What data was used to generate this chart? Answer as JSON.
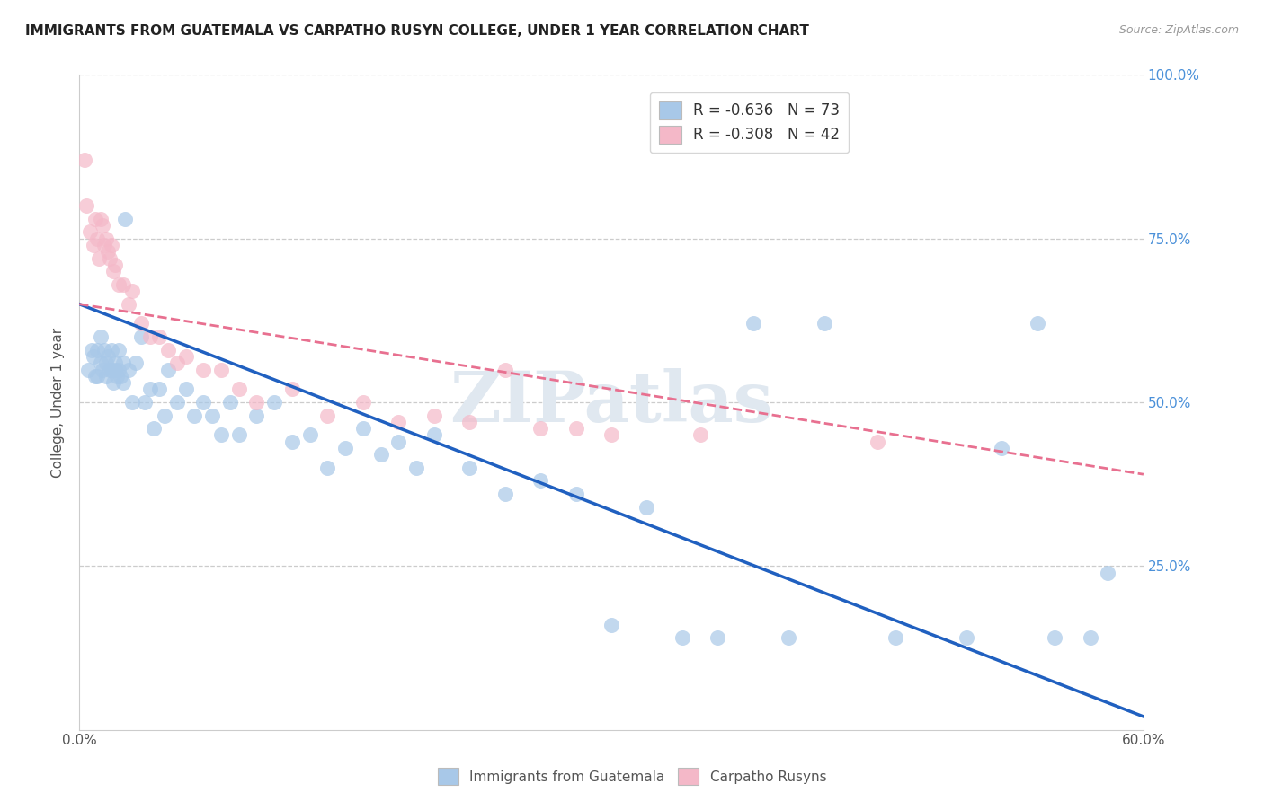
{
  "title": "IMMIGRANTS FROM GUATEMALA VS CARPATHO RUSYN COLLEGE, UNDER 1 YEAR CORRELATION CHART",
  "source": "Source: ZipAtlas.com",
  "ylabel": "College, Under 1 year",
  "xlim": [
    0.0,
    0.6
  ],
  "ylim": [
    0.0,
    1.0
  ],
  "xticks": [
    0.0,
    0.1,
    0.2,
    0.3,
    0.4,
    0.5,
    0.6
  ],
  "xticklabels": [
    "0.0%",
    "",
    "",
    "",
    "",
    "",
    "60.0%"
  ],
  "yticks": [
    0.0,
    0.25,
    0.5,
    0.75,
    1.0
  ],
  "yticklabels_right": [
    "",
    "25.0%",
    "50.0%",
    "75.0%",
    "100.0%"
  ],
  "legend_entry1": "R = -0.636   N = 73",
  "legend_entry2": "R = -0.308   N = 42",
  "blue_scatter_color": "#a8c8e8",
  "pink_scatter_color": "#f4b8c8",
  "blue_line_color": "#2060c0",
  "pink_line_color": "#e87090",
  "watermark": "ZIPatlas",
  "blue_line_x0": 0.0,
  "blue_line_y0": 0.65,
  "blue_line_x1": 0.6,
  "blue_line_y1": 0.02,
  "pink_line_x0": 0.0,
  "pink_line_y0": 0.65,
  "pink_line_x1": 0.6,
  "pink_line_y1": 0.39,
  "blue_x": [
    0.005,
    0.007,
    0.008,
    0.009,
    0.01,
    0.01,
    0.012,
    0.012,
    0.013,
    0.014,
    0.015,
    0.015,
    0.016,
    0.017,
    0.018,
    0.018,
    0.019,
    0.02,
    0.02,
    0.021,
    0.022,
    0.022,
    0.023,
    0.025,
    0.025,
    0.026,
    0.028,
    0.03,
    0.032,
    0.035,
    0.037,
    0.04,
    0.042,
    0.045,
    0.048,
    0.05,
    0.055,
    0.06,
    0.065,
    0.07,
    0.075,
    0.08,
    0.085,
    0.09,
    0.1,
    0.11,
    0.12,
    0.13,
    0.14,
    0.15,
    0.16,
    0.17,
    0.18,
    0.19,
    0.2,
    0.22,
    0.24,
    0.26,
    0.28,
    0.3,
    0.32,
    0.34,
    0.36,
    0.38,
    0.4,
    0.42,
    0.46,
    0.5,
    0.52,
    0.54,
    0.55,
    0.57,
    0.58
  ],
  "blue_y": [
    0.55,
    0.58,
    0.57,
    0.54,
    0.58,
    0.54,
    0.56,
    0.6,
    0.55,
    0.58,
    0.56,
    0.54,
    0.57,
    0.55,
    0.55,
    0.58,
    0.53,
    0.56,
    0.55,
    0.54,
    0.55,
    0.58,
    0.54,
    0.53,
    0.56,
    0.78,
    0.55,
    0.5,
    0.56,
    0.6,
    0.5,
    0.52,
    0.46,
    0.52,
    0.48,
    0.55,
    0.5,
    0.52,
    0.48,
    0.5,
    0.48,
    0.45,
    0.5,
    0.45,
    0.48,
    0.5,
    0.44,
    0.45,
    0.4,
    0.43,
    0.46,
    0.42,
    0.44,
    0.4,
    0.45,
    0.4,
    0.36,
    0.38,
    0.36,
    0.16,
    0.34,
    0.14,
    0.14,
    0.62,
    0.14,
    0.62,
    0.14,
    0.14,
    0.43,
    0.62,
    0.14,
    0.14,
    0.24
  ],
  "pink_x": [
    0.003,
    0.004,
    0.006,
    0.008,
    0.009,
    0.01,
    0.011,
    0.012,
    0.013,
    0.014,
    0.015,
    0.016,
    0.017,
    0.018,
    0.019,
    0.02,
    0.022,
    0.025,
    0.028,
    0.03,
    0.035,
    0.04,
    0.045,
    0.05,
    0.055,
    0.06,
    0.07,
    0.08,
    0.09,
    0.1,
    0.12,
    0.14,
    0.16,
    0.18,
    0.2,
    0.22,
    0.24,
    0.26,
    0.28,
    0.3,
    0.35,
    0.45
  ],
  "pink_y": [
    0.87,
    0.8,
    0.76,
    0.74,
    0.78,
    0.75,
    0.72,
    0.78,
    0.77,
    0.74,
    0.75,
    0.73,
    0.72,
    0.74,
    0.7,
    0.71,
    0.68,
    0.68,
    0.65,
    0.67,
    0.62,
    0.6,
    0.6,
    0.58,
    0.56,
    0.57,
    0.55,
    0.55,
    0.52,
    0.5,
    0.52,
    0.48,
    0.5,
    0.47,
    0.48,
    0.47,
    0.55,
    0.46,
    0.46,
    0.45,
    0.45,
    0.44
  ]
}
